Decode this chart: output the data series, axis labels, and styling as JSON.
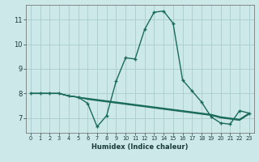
{
  "xlabel": "Humidex (Indice chaleur)",
  "bg_color": "#cce8e8",
  "grid_color": "#aacccc",
  "line_color": "#1a6b5a",
  "x_values": [
    0,
    1,
    2,
    3,
    4,
    5,
    6,
    7,
    8,
    9,
    10,
    11,
    12,
    13,
    14,
    15,
    16,
    17,
    18,
    19,
    20,
    21,
    22,
    23
  ],
  "series_main": [
    8.0,
    8.0,
    8.0,
    8.0,
    7.9,
    7.85,
    7.6,
    6.65,
    7.1,
    8.5,
    9.45,
    9.4,
    10.6,
    11.3,
    11.35,
    10.85,
    8.55,
    8.1,
    7.65,
    7.05,
    6.8,
    6.75,
    7.3,
    7.2
  ],
  "series_flat1": [
    8.0,
    8.0,
    8.0,
    8.0,
    7.9,
    7.85,
    7.8,
    7.75,
    7.7,
    7.65,
    7.6,
    7.55,
    7.5,
    7.45,
    7.4,
    7.35,
    7.3,
    7.25,
    7.2,
    7.15,
    7.05,
    7.0,
    6.95,
    7.2
  ],
  "series_flat2": [
    8.0,
    8.0,
    8.0,
    8.0,
    7.9,
    7.85,
    7.78,
    7.73,
    7.68,
    7.63,
    7.58,
    7.53,
    7.48,
    7.43,
    7.38,
    7.33,
    7.28,
    7.23,
    7.18,
    7.13,
    7.03,
    6.98,
    6.93,
    7.18
  ],
  "series_flat3": [
    8.0,
    8.0,
    8.0,
    8.0,
    7.9,
    7.85,
    7.76,
    7.71,
    7.66,
    7.61,
    7.56,
    7.51,
    7.46,
    7.41,
    7.36,
    7.31,
    7.26,
    7.21,
    7.16,
    7.11,
    7.01,
    6.96,
    6.91,
    7.16
  ],
  "ylim": [
    6.4,
    11.6
  ],
  "xlim": [
    -0.5,
    23.5
  ],
  "yticks": [
    7,
    8,
    9,
    10,
    11
  ],
  "xticks": [
    0,
    1,
    2,
    3,
    4,
    5,
    6,
    7,
    8,
    9,
    10,
    11,
    12,
    13,
    14,
    15,
    16,
    17,
    18,
    19,
    20,
    21,
    22,
    23
  ]
}
